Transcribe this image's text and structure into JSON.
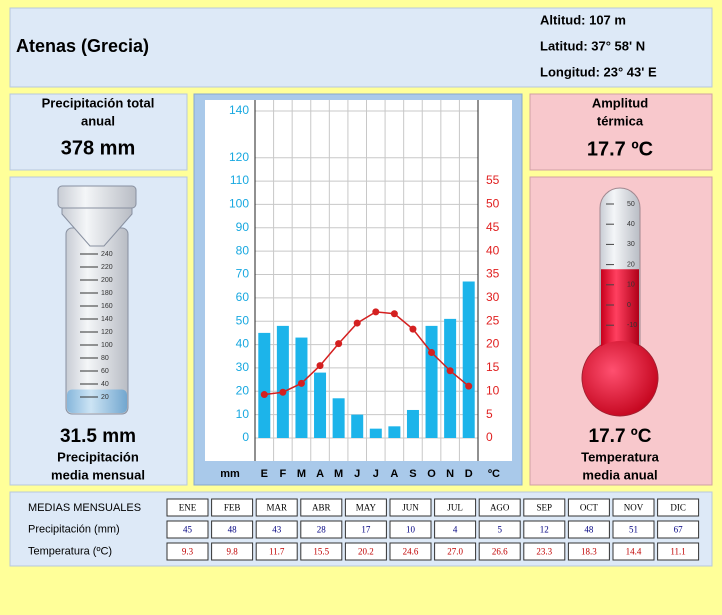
{
  "header": {
    "title": "Atenas (Grecia)",
    "info": [
      "Altitud: 107 m",
      "Latitud: 37° 58' N",
      "Longitud:  23° 43' E"
    ]
  },
  "left": {
    "total_label": [
      "Precipitación total",
      "anual"
    ],
    "total_value": "378 mm",
    "gauge_ticks": [
      20,
      40,
      60,
      80,
      100,
      120,
      140,
      160,
      180,
      200,
      220,
      240
    ],
    "gauge_level": 31.5,
    "mean_value": "31.5 mm",
    "mean_label": [
      "Precipitación",
      "media mensual"
    ]
  },
  "right": {
    "range_label": [
      "Amplitud",
      "térmica"
    ],
    "range_value": "17.7 ºC",
    "thermo_ticks": [
      -10,
      0,
      10,
      20,
      30,
      40,
      50
    ],
    "thermo_level": 17.7,
    "mean_value": "17.7 ºC",
    "mean_label": [
      "Temperatura",
      "media anual"
    ]
  },
  "chart_data": {
    "type": "bar",
    "categories": [
      "E",
      "F",
      "M",
      "A",
      "M",
      "J",
      "J",
      "A",
      "S",
      "O",
      "N",
      "D"
    ],
    "x_left_label": "mm",
    "x_right_label": "ºC",
    "ylim": [
      0,
      140
    ],
    "yticks": [
      0,
      10,
      20,
      30,
      40,
      50,
      60,
      70,
      80,
      90,
      100,
      110,
      120,
      140
    ],
    "y2lim": [
      0,
      70
    ],
    "y2ticks": [
      0,
      5,
      10,
      15,
      20,
      25,
      30,
      35,
      40,
      45,
      50,
      55
    ],
    "grid": true,
    "series": [
      {
        "name": "Precipitación",
        "type": "bar",
        "color": "#1cb4ea",
        "values": [
          45,
          48,
          43,
          28,
          17,
          10,
          4,
          5,
          12,
          48,
          51,
          67
        ]
      },
      {
        "name": "Temperatura",
        "type": "line",
        "axis": "y2",
        "color": "#d42020",
        "values": [
          9.3,
          9.8,
          11.7,
          15.5,
          20.2,
          24.6,
          27.0,
          26.6,
          23.3,
          18.3,
          14.4,
          11.1
        ]
      }
    ]
  },
  "table": {
    "title": "MEDIAS MENSUALES",
    "months": [
      "ENE",
      "FEB",
      "MAR",
      "ABR",
      "MAY",
      "JUN",
      "JUL",
      "AGO",
      "SEP",
      "OCT",
      "NOV",
      "DIC"
    ],
    "rows": [
      {
        "label": "Precipitación (mm)",
        "cells": [
          "45",
          "48",
          "43",
          "28",
          "17",
          "10",
          "4",
          "5",
          "12",
          "48",
          "51",
          "67"
        ]
      },
      {
        "label": "Temperatura (ºC)",
        "cells": [
          "9.3",
          "9.8",
          "11.7",
          "15.5",
          "20.2",
          "24.6",
          "27.0",
          "26.6",
          "23.3",
          "18.3",
          "14.4",
          "11.1"
        ]
      }
    ]
  }
}
